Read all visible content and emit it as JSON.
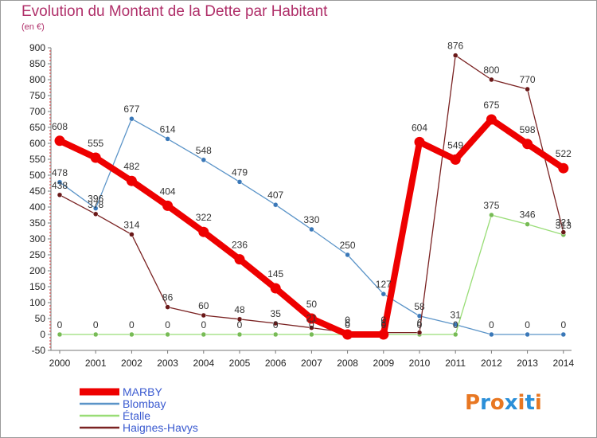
{
  "title": "Evolution du Montant de la Dette par Habitant",
  "unit": "(en €)",
  "logo": "Proxiti",
  "chart_data": {
    "type": "line",
    "x": [
      2000,
      2001,
      2002,
      2003,
      2004,
      2005,
      2006,
      2007,
      2008,
      2009,
      2010,
      2011,
      2012,
      2013,
      2014
    ],
    "ylim": [
      -50,
      900
    ],
    "yticks": [
      -50,
      0,
      50,
      100,
      150,
      200,
      250,
      300,
      350,
      400,
      450,
      500,
      550,
      600,
      650,
      700,
      750,
      800,
      850,
      900
    ],
    "grid": false,
    "legend_position": "bottom-left",
    "series": [
      {
        "name": "MARBY",
        "color": "#ee0000",
        "emphasis": true,
        "values": [
          608,
          555,
          482,
          404,
          322,
          236,
          145,
          50,
          0,
          0,
          604,
          549,
          675,
          598,
          522
        ]
      },
      {
        "name": "Blombay",
        "color": "#5b94c8",
        "emphasis": false,
        "values": [
          478,
          396,
          677,
          614,
          548,
          479,
          407,
          330,
          250,
          127,
          58,
          31,
          0,
          0,
          0
        ]
      },
      {
        "name": "Étalle",
        "color": "#99dd77",
        "emphasis": false,
        "values": [
          0,
          0,
          0,
          0,
          0,
          0,
          0,
          0,
          0,
          0,
          0,
          0,
          375,
          346,
          313
        ]
      },
      {
        "name": "Haignes-Havys",
        "color": "#7a2222",
        "emphasis": false,
        "values": [
          438,
          378,
          314,
          86,
          60,
          48,
          35,
          21,
          6,
          6,
          6,
          876,
          800,
          770,
          321
        ]
      }
    ]
  }
}
